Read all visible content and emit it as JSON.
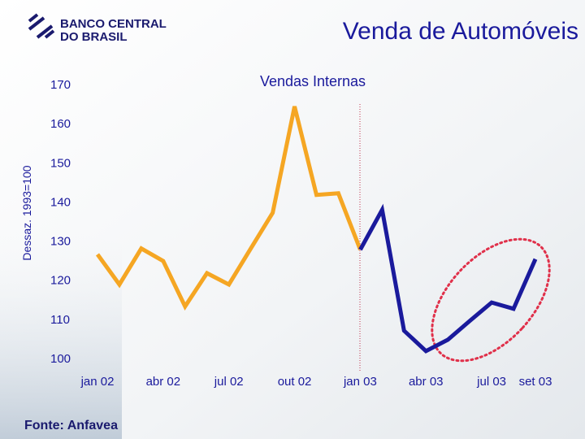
{
  "header": {
    "logo_line1": "BANCO CENTRAL",
    "logo_line2": "DO BRASIL"
  },
  "footer": {
    "source": "Fonte: Anfavea"
  },
  "chart_data": {
    "type": "line",
    "title": "Venda de Automóveis",
    "subtitle": "Vendas Internas",
    "y_label": "Dessaz. 1993=100",
    "categories": [
      "jan 02",
      null,
      null,
      "abr 02",
      null,
      null,
      "jul 02",
      null,
      null,
      "out 02",
      null,
      null,
      "jan 03",
      null,
      null,
      "abr 03",
      null,
      null,
      "jul 03",
      null,
      "set 03"
    ],
    "series": [
      {
        "color": "#f5a623",
        "values": [
          126.4,
          118.7,
          127.9,
          124.7,
          113.1,
          121.6,
          118.7,
          127.9,
          137.0,
          164.2,
          141.6,
          142.0,
          127.6,
          null,
          null,
          null,
          null,
          null,
          null,
          null,
          null
        ]
      },
      {
        "color": "#1a1a9c",
        "values": [
          null,
          null,
          null,
          null,
          null,
          null,
          null,
          null,
          null,
          null,
          null,
          null,
          127.6,
          137.8,
          106.9,
          101.7,
          104.6,
          109.4,
          114.1,
          112.5,
          125.2
        ]
      }
    ],
    "ylim": [
      100,
      170
    ],
    "yticks": [
      100,
      110,
      120,
      130,
      140,
      150,
      160,
      170
    ],
    "grid": false
  }
}
